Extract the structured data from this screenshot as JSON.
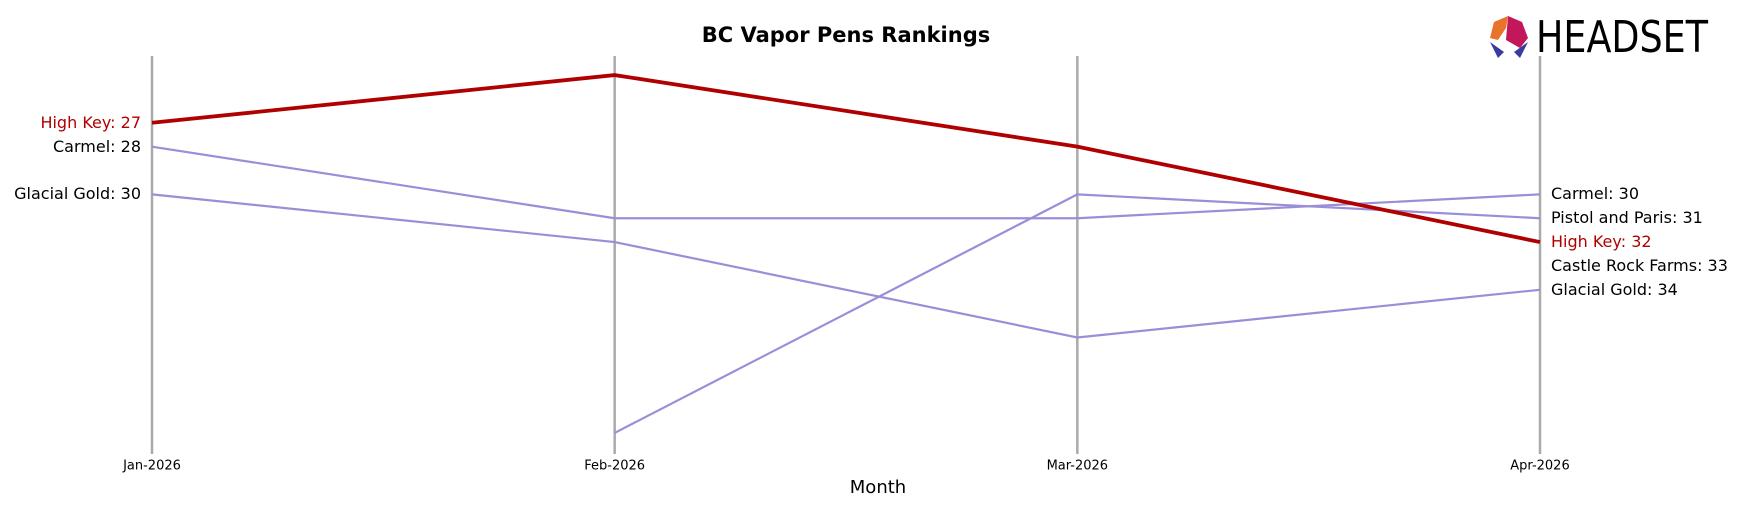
{
  "logo": "HEADSET",
  "chart_data": {
    "type": "bump",
    "title": "BC Vapor Pens Rankings",
    "x_label": "Month",
    "categories": [
      "Jan-2026",
      "Feb-2026",
      "Mar-2026",
      "Apr-2026"
    ],
    "ylim": [
      40.8,
      24.2
    ],
    "inverted": true,
    "grid": "vertical",
    "series": [
      {
        "name": "Carmel",
        "color": "#9b8ed9",
        "linewidth": 2.2,
        "values": [
          28,
          31,
          31,
          30
        ]
      },
      {
        "name": "Glacial Gold",
        "color": "#9b8ed9",
        "linewidth": 2.2,
        "values": [
          30,
          32,
          36,
          34
        ]
      },
      {
        "name": "Pistol and Paris",
        "color": "#9b8ed9",
        "linewidth": 2.2,
        "values": [
          null,
          40,
          30,
          31
        ]
      },
      {
        "name": "Castle Rock Farms",
        "color": "#9b8ed9",
        "linewidth": 2.2,
        "values": [
          null,
          null,
          null,
          33
        ]
      },
      {
        "name": "High Key",
        "color": "#b00000",
        "linewidth": 3.8,
        "values": [
          27,
          25,
          28,
          32
        ]
      }
    ]
  }
}
